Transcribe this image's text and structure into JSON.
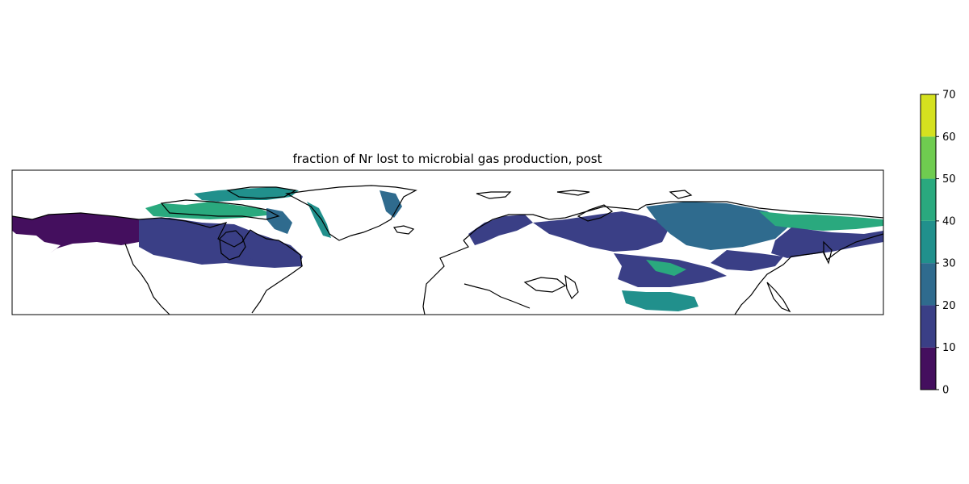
{
  "chart_data": {
    "type": "heatmap",
    "title": "fraction of Nr lost to microbial gas production, post",
    "projection": "PlateCarree",
    "extent": {
      "lon": [
        -180,
        180
      ],
      "lat": [
        30,
        90
      ]
    },
    "colormap": "viridis",
    "colorbar": {
      "range": [
        0,
        70
      ],
      "ticks": [
        "0",
        "10",
        "20",
        "30",
        "40",
        "50",
        "60",
        "70"
      ],
      "bins": [
        {
          "from": 0,
          "to": 10,
          "color": "#440f5e"
        },
        {
          "from": 10,
          "to": 20,
          "color": "#3a3f86"
        },
        {
          "from": 20,
          "to": 30,
          "color": "#2f6b8e"
        },
        {
          "from": 30,
          "to": 40,
          "color": "#21908c"
        },
        {
          "from": 40,
          "to": 50,
          "color": "#2aa97e"
        },
        {
          "from": 50,
          "to": 60,
          "color": "#6fcc50"
        },
        {
          "from": 60,
          "to": 70,
          "color": "#d5e11f"
        }
      ],
      "placement": "right"
    },
    "grid": false,
    "regions": [
      {
        "name": "Alaska",
        "value": 5
      },
      {
        "name": "Western Canada",
        "value": 18
      },
      {
        "name": "Canadian Arctic Archipelago",
        "value": 42
      },
      {
        "name": "Quebec / Labrador",
        "value": 15
      },
      {
        "name": "Greenland margins",
        "value": 35
      },
      {
        "name": "Scandinavia",
        "value": 18
      },
      {
        "name": "Western Siberia",
        "value": 15
      },
      {
        "name": "Central Siberia",
        "value": 28
      },
      {
        "name": "Siberian Arctic coast",
        "value": 42
      },
      {
        "name": "Eastern Siberia",
        "value": 18
      },
      {
        "name": "Kazakh steppe",
        "value": 20
      },
      {
        "name": "Mongolia",
        "value": 38
      }
    ]
  }
}
